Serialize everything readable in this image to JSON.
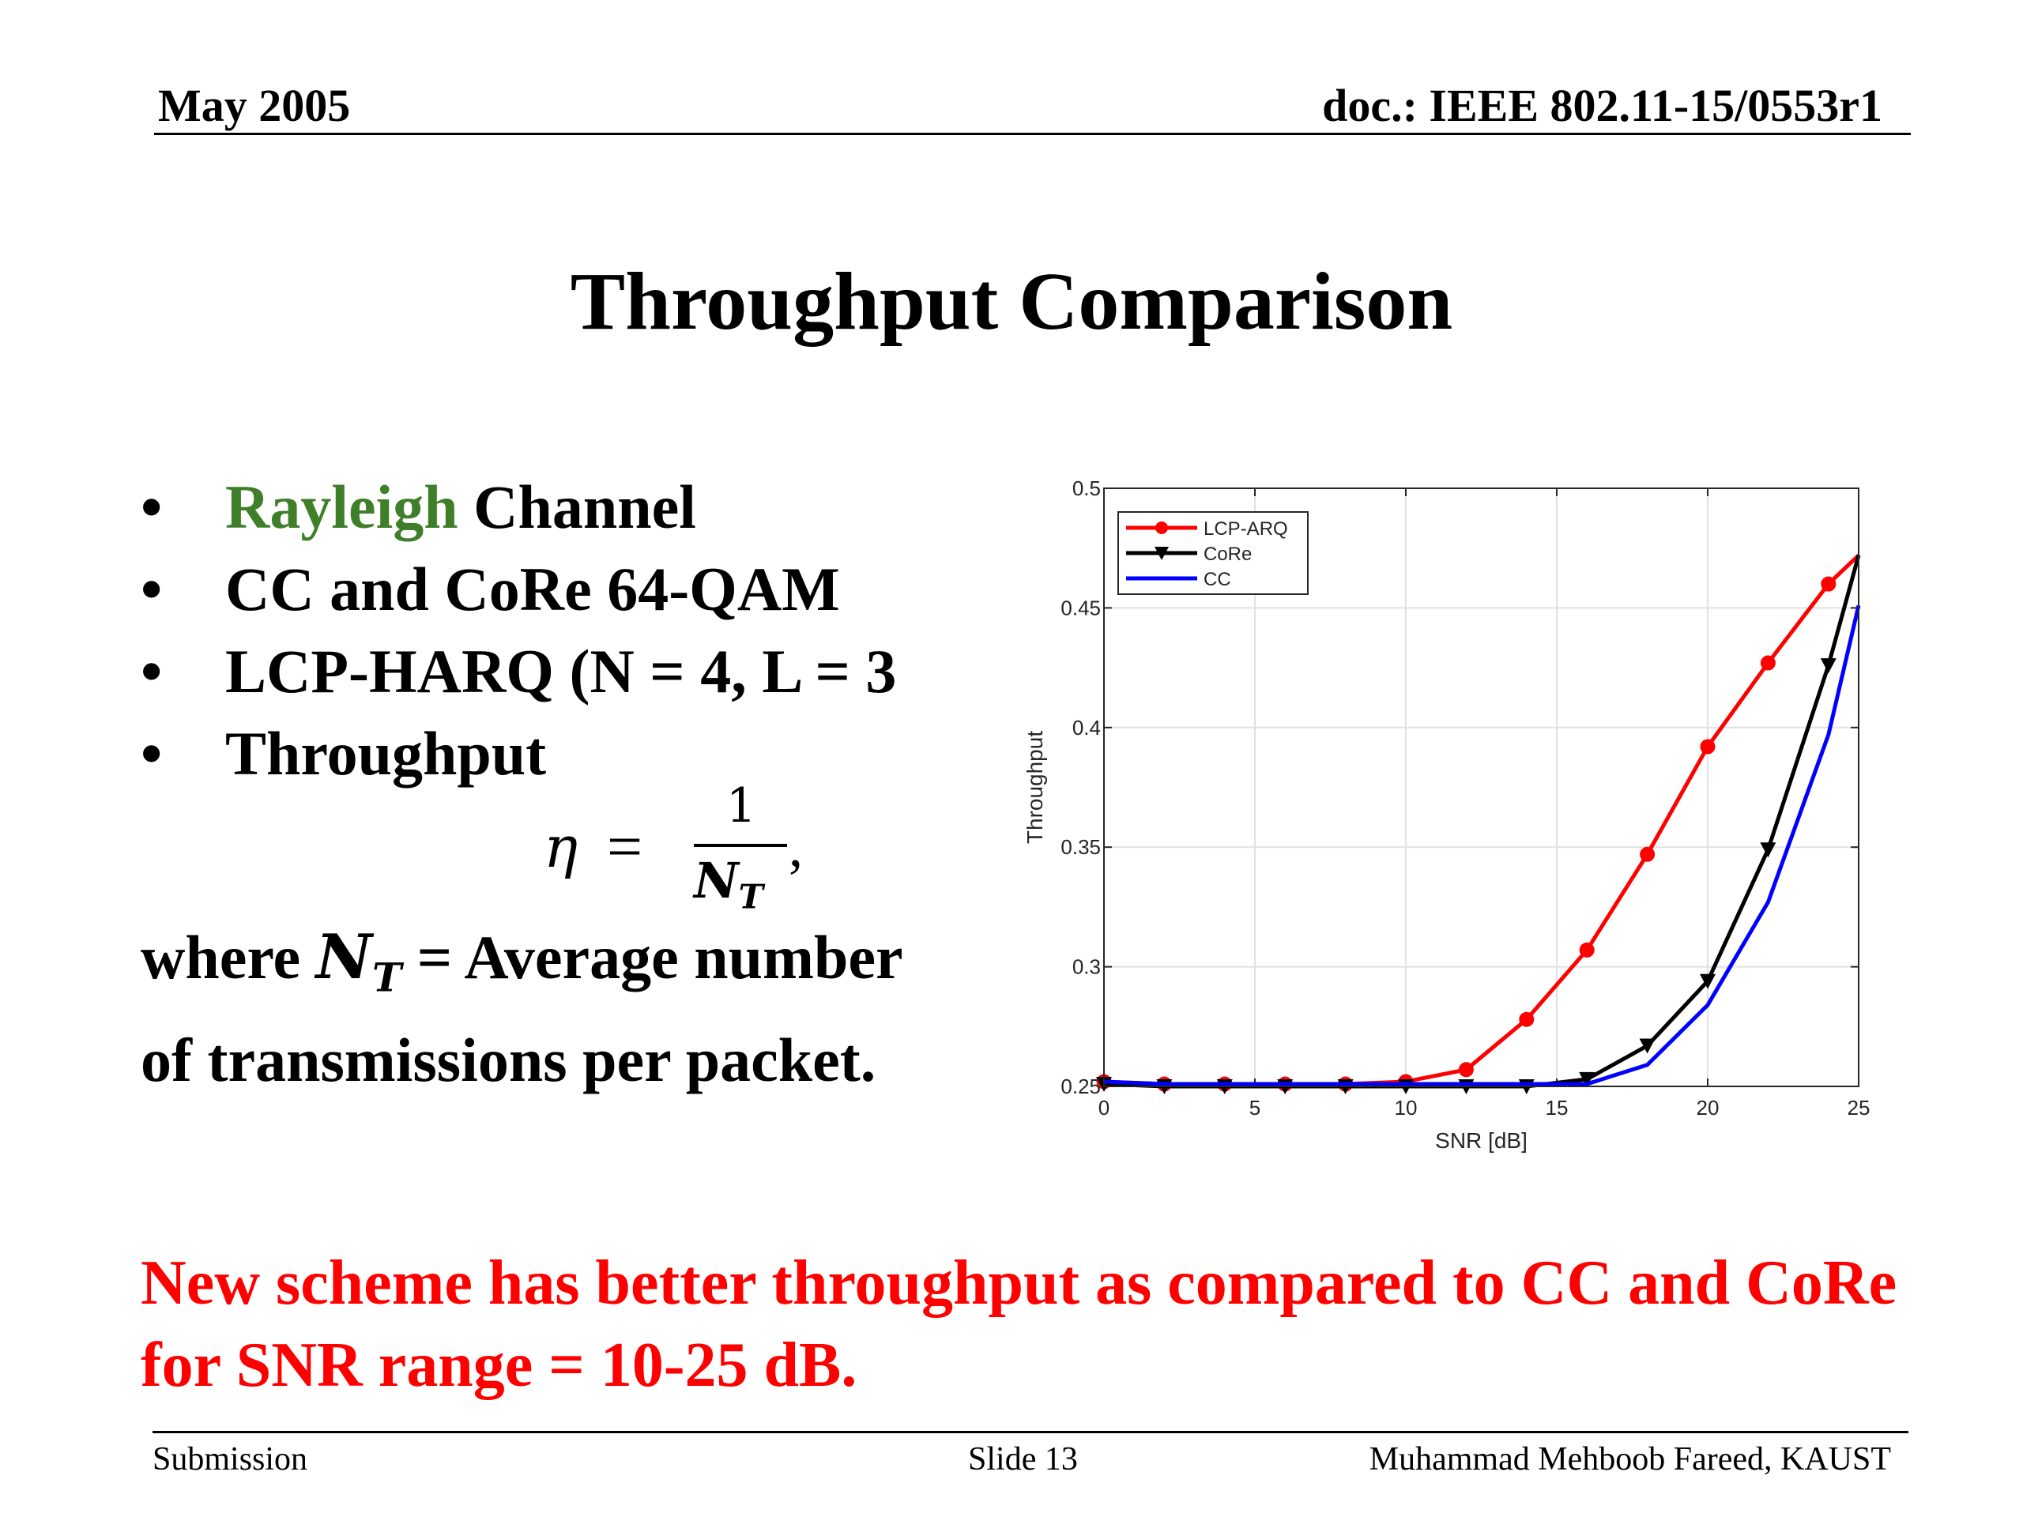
{
  "header": {
    "left": "May 2005",
    "right": "doc.: IEEE 802.11-15/0553r1"
  },
  "title": "Throughput Comparison",
  "bullets": [
    {
      "marker": "•",
      "highlight": "Rayleigh",
      "text": " Channel"
    },
    {
      "marker": "•",
      "highlight": "",
      "text": "CC and CoRe 64-QAM"
    },
    {
      "marker": "•",
      "highlight": "",
      "text": "LCP-HARQ (N = 4, L = 3"
    },
    {
      "marker": "•",
      "highlight": "",
      "text": "Throughput"
    }
  ],
  "formula": {
    "lhs": "η",
    "eq": "=",
    "numerator": "1",
    "denominator": "N",
    "subscript": "T",
    "trail": ","
  },
  "definition": {
    "prefix": "where ",
    "symbol": "N",
    "subscript": "T",
    "text": " = Average number",
    "line2": "of transmissions per packet."
  },
  "conclusion": "New scheme has better throughput as compared to CC and CoRe for SNR range = 10-25 dB.",
  "footer": {
    "left": "Submission",
    "center": "Slide 13",
    "right": "Muhammad Mehboob Fareed, KAUST"
  },
  "colors": {
    "highlight": "#3f7f2a",
    "conclusion": "#ff0000"
  },
  "chart_data": {
    "type": "line",
    "xlabel": "SNR [dB]",
    "ylabel": "Throughput",
    "xlim": [
      0,
      25
    ],
    "ylim": [
      0.25,
      0.5
    ],
    "xticks": [
      0,
      5,
      10,
      15,
      20,
      25
    ],
    "yticks": [
      0.25,
      0.3,
      0.35,
      0.4,
      0.45,
      0.5
    ],
    "xtick_labels": [
      "0",
      "5",
      "10",
      "15",
      "20",
      "25"
    ],
    "ytick_labels": [
      "0.25",
      "0.3",
      "0.35",
      "0.4",
      "0.45",
      "0.5"
    ],
    "grid": true,
    "legend_position": "top-left",
    "series": [
      {
        "name": "LCP-ARQ",
        "color": "#ff0000",
        "marker": "circle",
        "x": [
          0,
          2,
          4,
          6,
          8,
          10,
          12,
          14,
          16,
          18,
          20,
          22,
          24,
          25
        ],
        "y": [
          0.252,
          0.251,
          0.251,
          0.251,
          0.251,
          0.252,
          0.257,
          0.278,
          0.307,
          0.347,
          0.392,
          0.427,
          0.46,
          0.472
        ],
        "marker_x": [
          0,
          2,
          4,
          6,
          8,
          10,
          12,
          14,
          16,
          18,
          20,
          22,
          24
        ]
      },
      {
        "name": "CoRe",
        "color": "#000000",
        "marker": "triangle-down",
        "x": [
          0,
          2,
          4,
          6,
          8,
          10,
          12,
          14,
          16,
          18,
          20,
          22,
          24,
          25
        ],
        "y": [
          0.251,
          0.25,
          0.25,
          0.25,
          0.25,
          0.25,
          0.25,
          0.25,
          0.253,
          0.267,
          0.294,
          0.349,
          0.426,
          0.472
        ],
        "marker_x": [
          0,
          2,
          4,
          6,
          8,
          10,
          12,
          14,
          16,
          18,
          20,
          22,
          24
        ]
      },
      {
        "name": "CC",
        "color": "#0000ff",
        "marker": "none",
        "x": [
          0,
          2,
          4,
          6,
          8,
          10,
          12,
          14,
          16,
          18,
          20,
          22,
          24,
          25
        ],
        "y": [
          0.252,
          0.251,
          0.251,
          0.251,
          0.251,
          0.251,
          0.251,
          0.251,
          0.251,
          0.259,
          0.284,
          0.327,
          0.397,
          0.451
        ],
        "marker_x": []
      }
    ]
  }
}
